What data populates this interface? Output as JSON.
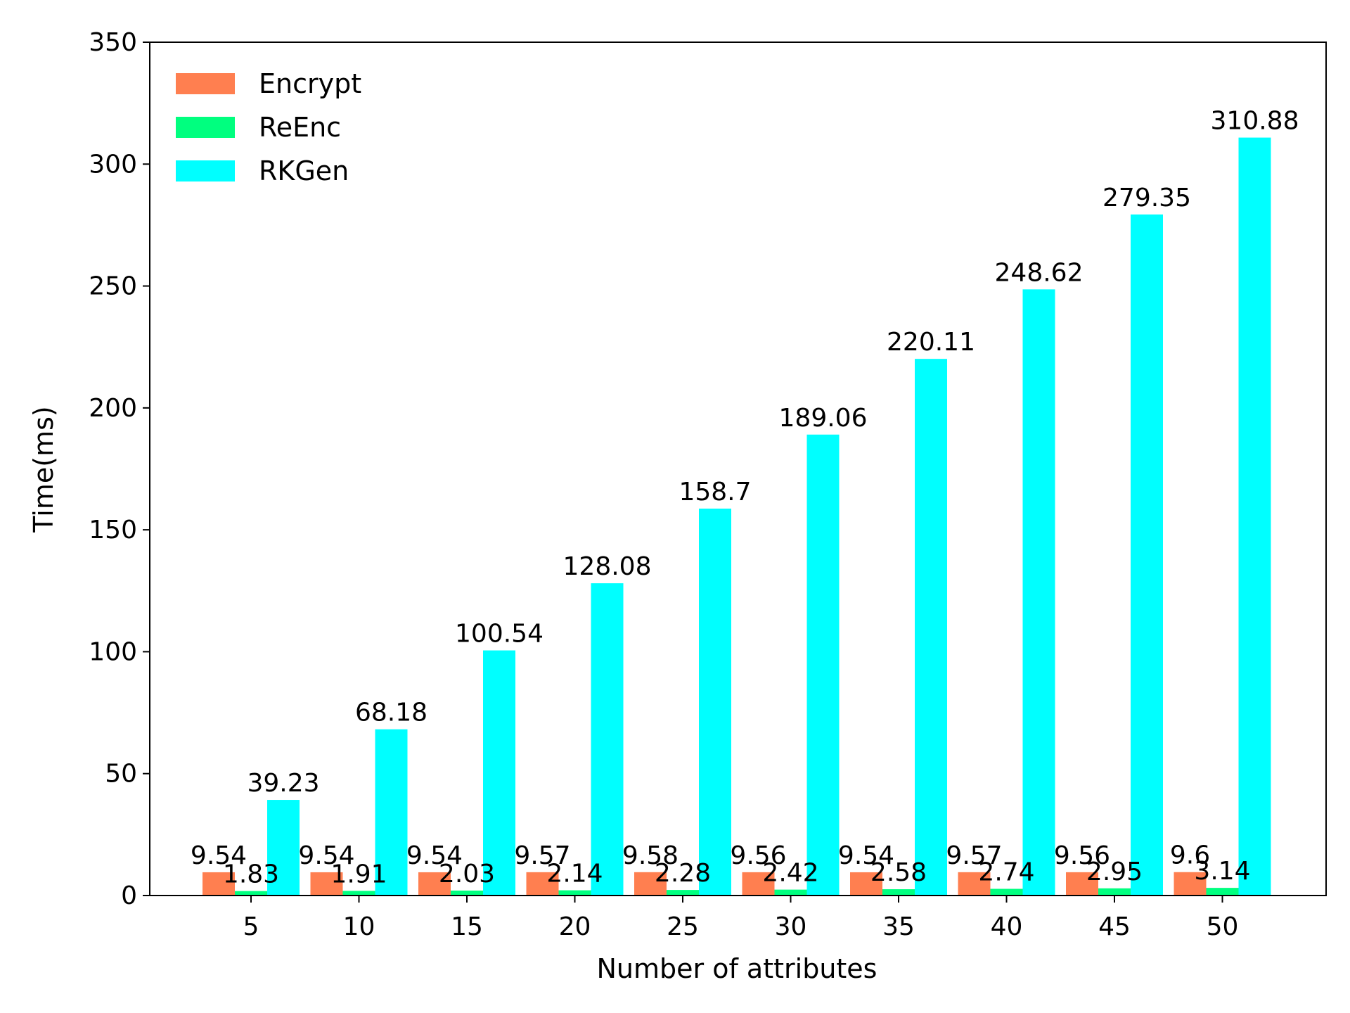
{
  "chart_data": {
    "type": "bar",
    "title": "",
    "xlabel": "Number of attributes",
    "ylabel": "Time(ms)",
    "categories": [
      "5",
      "10",
      "15",
      "20",
      "25",
      "30",
      "35",
      "40",
      "45",
      "50"
    ],
    "ylim": [
      0,
      350
    ],
    "yticks": [
      0,
      50,
      100,
      150,
      200,
      250,
      300,
      350
    ],
    "grid": false,
    "legend_position": "top-left",
    "series": [
      {
        "name": "Encrypt",
        "color": "#ff7f50",
        "values": [
          9.54,
          9.54,
          9.54,
          9.57,
          9.58,
          9.56,
          9.54,
          9.57,
          9.56,
          9.6
        ],
        "labels": [
          "9.54",
          "9.54",
          "9.54",
          "9.57",
          "9.58",
          "9.56",
          "9.54",
          "9.57",
          "9.56",
          "9.6"
        ]
      },
      {
        "name": "ReEnc",
        "color": "#00ff7f",
        "values": [
          1.83,
          1.91,
          2.03,
          2.14,
          2.28,
          2.42,
          2.58,
          2.74,
          2.95,
          3.14
        ],
        "labels": [
          "1.83",
          "1.91",
          "2.03",
          "2.14",
          "2.28",
          "2.42",
          "2.58",
          "2.74",
          "2.95",
          "3.14"
        ]
      },
      {
        "name": "RKGen",
        "color": "#00ffff",
        "values": [
          39.23,
          68.18,
          100.54,
          128.08,
          158.7,
          189.06,
          220.11,
          248.62,
          279.35,
          310.88
        ],
        "labels": [
          "39.23",
          "68.18",
          "100.54",
          "128.08",
          "158.7",
          "189.06",
          "220.11",
          "248.62",
          "279.35",
          "310.88"
        ]
      }
    ]
  }
}
